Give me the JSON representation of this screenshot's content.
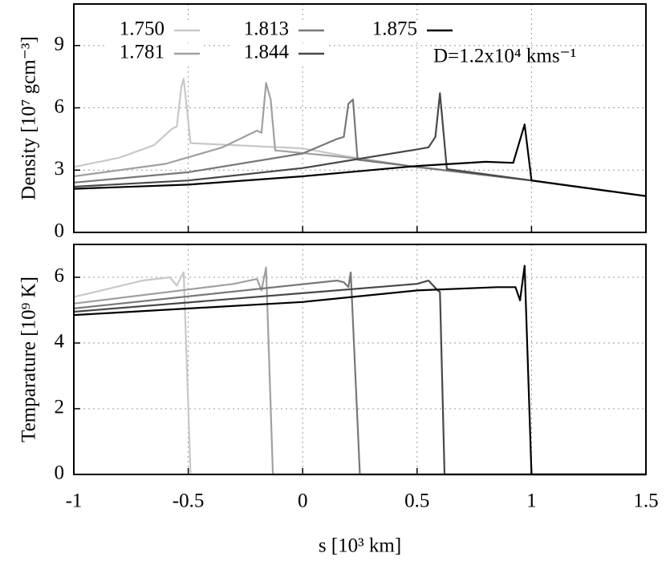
{
  "chart_data": [
    {
      "type": "line",
      "ylabel": "Density [10⁷ gcm⁻³]",
      "annotation": "D=1.2x10⁴ kms⁻¹",
      "grid": true,
      "xlim": [
        -1,
        1.5
      ],
      "xticks": [
        -1,
        -0.5,
        0,
        0.5,
        1,
        1.5
      ],
      "ylim": [
        0,
        11
      ],
      "yticks": [
        0,
        3,
        6,
        9
      ],
      "series": [
        {
          "name": "1.750",
          "color": "#c8c8c8",
          "x": [
            -1,
            -0.8,
            -0.65,
            -0.57,
            -0.55,
            -0.53,
            -0.52,
            -0.49,
            0,
            0.25,
            0.5,
            1,
            1.5
          ],
          "values": [
            3.15,
            3.6,
            4.2,
            5.0,
            5.1,
            7.0,
            7.4,
            4.3,
            4.05,
            3.55,
            3.15,
            2.5,
            1.75
          ]
        },
        {
          "name": "1.781",
          "color": "#a0a0a0",
          "x": [
            -1,
            -0.6,
            -0.35,
            -0.2,
            -0.18,
            -0.16,
            -0.14,
            -0.12,
            0.25,
            0.5,
            1,
            1.5
          ],
          "values": [
            2.7,
            3.3,
            4.1,
            4.9,
            4.8,
            7.2,
            6.4,
            3.95,
            3.55,
            3.15,
            2.5,
            1.75
          ]
        },
        {
          "name": "1.813",
          "color": "#787878",
          "x": [
            -1,
            -0.5,
            0,
            0.15,
            0.18,
            0.2,
            0.22,
            0.24,
            0.5,
            1,
            1.5
          ],
          "values": [
            2.4,
            2.9,
            3.8,
            4.5,
            4.6,
            6.2,
            6.4,
            3.5,
            3.15,
            2.5,
            1.75
          ]
        },
        {
          "name": "1.844",
          "color": "#484848",
          "x": [
            -1,
            -0.5,
            0,
            0.5,
            0.55,
            0.58,
            0.6,
            0.63,
            1,
            1.5
          ],
          "values": [
            2.2,
            2.5,
            3.1,
            4.0,
            4.1,
            4.6,
            6.7,
            3.05,
            2.5,
            1.75
          ]
        },
        {
          "name": "1.875",
          "color": "#000000",
          "x": [
            -1,
            -0.5,
            0,
            0.5,
            0.8,
            0.92,
            0.97,
            1.0,
            1.5
          ],
          "values": [
            2.1,
            2.3,
            2.7,
            3.2,
            3.4,
            3.35,
            5.2,
            2.5,
            1.75
          ]
        }
      ]
    },
    {
      "type": "line",
      "ylabel": "Temparature [10⁹ K]",
      "xlabel": "s [10³ km]",
      "grid": true,
      "xlim": [
        -1,
        1.5
      ],
      "xticks": [
        -1,
        -0.5,
        0,
        0.5,
        1,
        1.5
      ],
      "ylim": [
        0,
        7
      ],
      "yticks": [
        0,
        2,
        4,
        6
      ],
      "series": [
        {
          "color": "#c8c8c8",
          "x": [
            -1,
            -0.7,
            -0.58,
            -0.55,
            -0.52,
            -0.49,
            1.5
          ],
          "values": [
            5.4,
            5.9,
            6.0,
            5.75,
            6.15,
            0,
            0
          ]
        },
        {
          "color": "#a0a0a0",
          "x": [
            -1,
            -0.3,
            -0.2,
            -0.18,
            -0.16,
            -0.13,
            1.5
          ],
          "values": [
            5.2,
            5.8,
            5.95,
            5.6,
            6.3,
            0,
            0
          ]
        },
        {
          "color": "#787878",
          "x": [
            -1,
            0.15,
            0.18,
            0.2,
            0.21,
            0.25,
            1.5
          ],
          "values": [
            5.05,
            5.9,
            5.85,
            5.7,
            6.15,
            0,
            0
          ]
        },
        {
          "color": "#484848",
          "x": [
            -1,
            0.5,
            0.55,
            0.59,
            0.6,
            0.62,
            1.5
          ],
          "values": [
            4.95,
            5.8,
            5.9,
            5.6,
            5.55,
            0,
            0
          ]
        },
        {
          "color": "#000000",
          "x": [
            -1,
            0,
            0.5,
            0.85,
            0.93,
            0.95,
            0.97,
            1.0,
            1.5
          ],
          "values": [
            4.85,
            5.25,
            5.6,
            5.7,
            5.7,
            5.3,
            6.35,
            0,
            0
          ]
        }
      ]
    }
  ]
}
